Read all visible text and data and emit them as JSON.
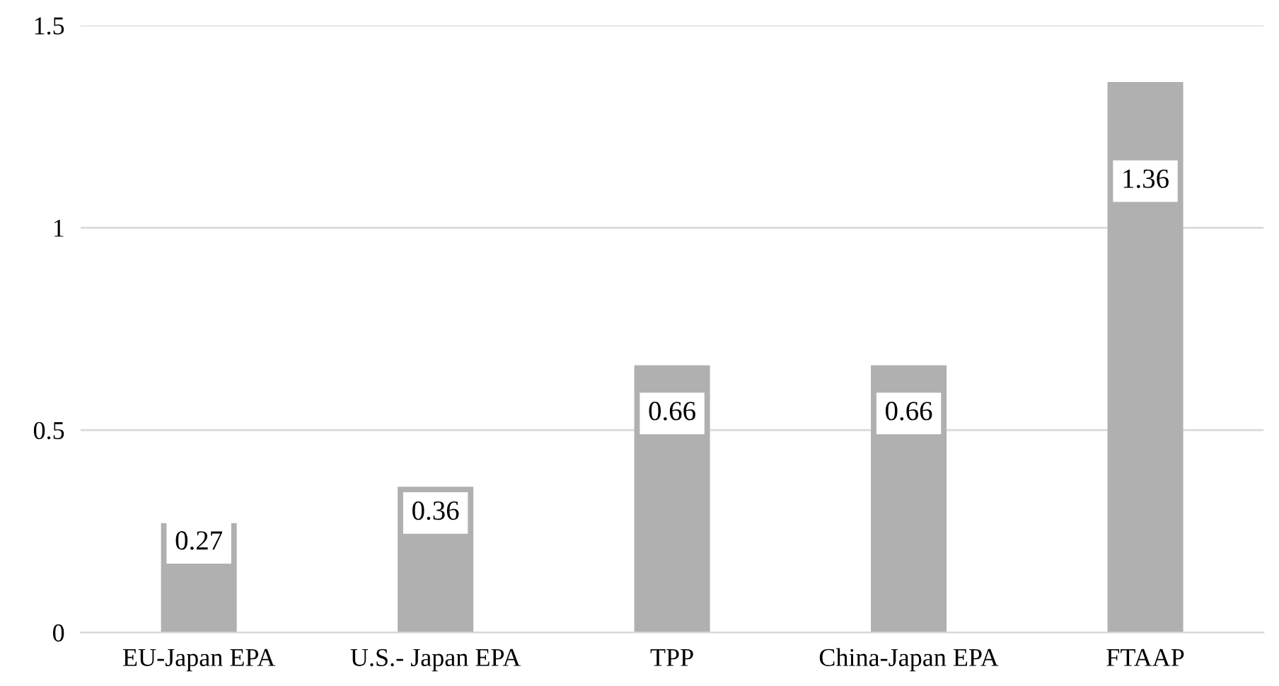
{
  "chart_data": {
    "type": "bar",
    "categories": [
      "EU-Japan EPA",
      "U.S.- Japan EPA",
      "TPP",
      "China-Japan EPA",
      "FTAAP"
    ],
    "values": [
      0.27,
      0.36,
      0.66,
      0.66,
      1.36
    ],
    "color": "#b0b0b0",
    "ylim": [
      0,
      1.5
    ],
    "yticks": [
      0,
      0.5,
      1,
      1.5
    ],
    "grid": "y",
    "data_labels": true
  }
}
